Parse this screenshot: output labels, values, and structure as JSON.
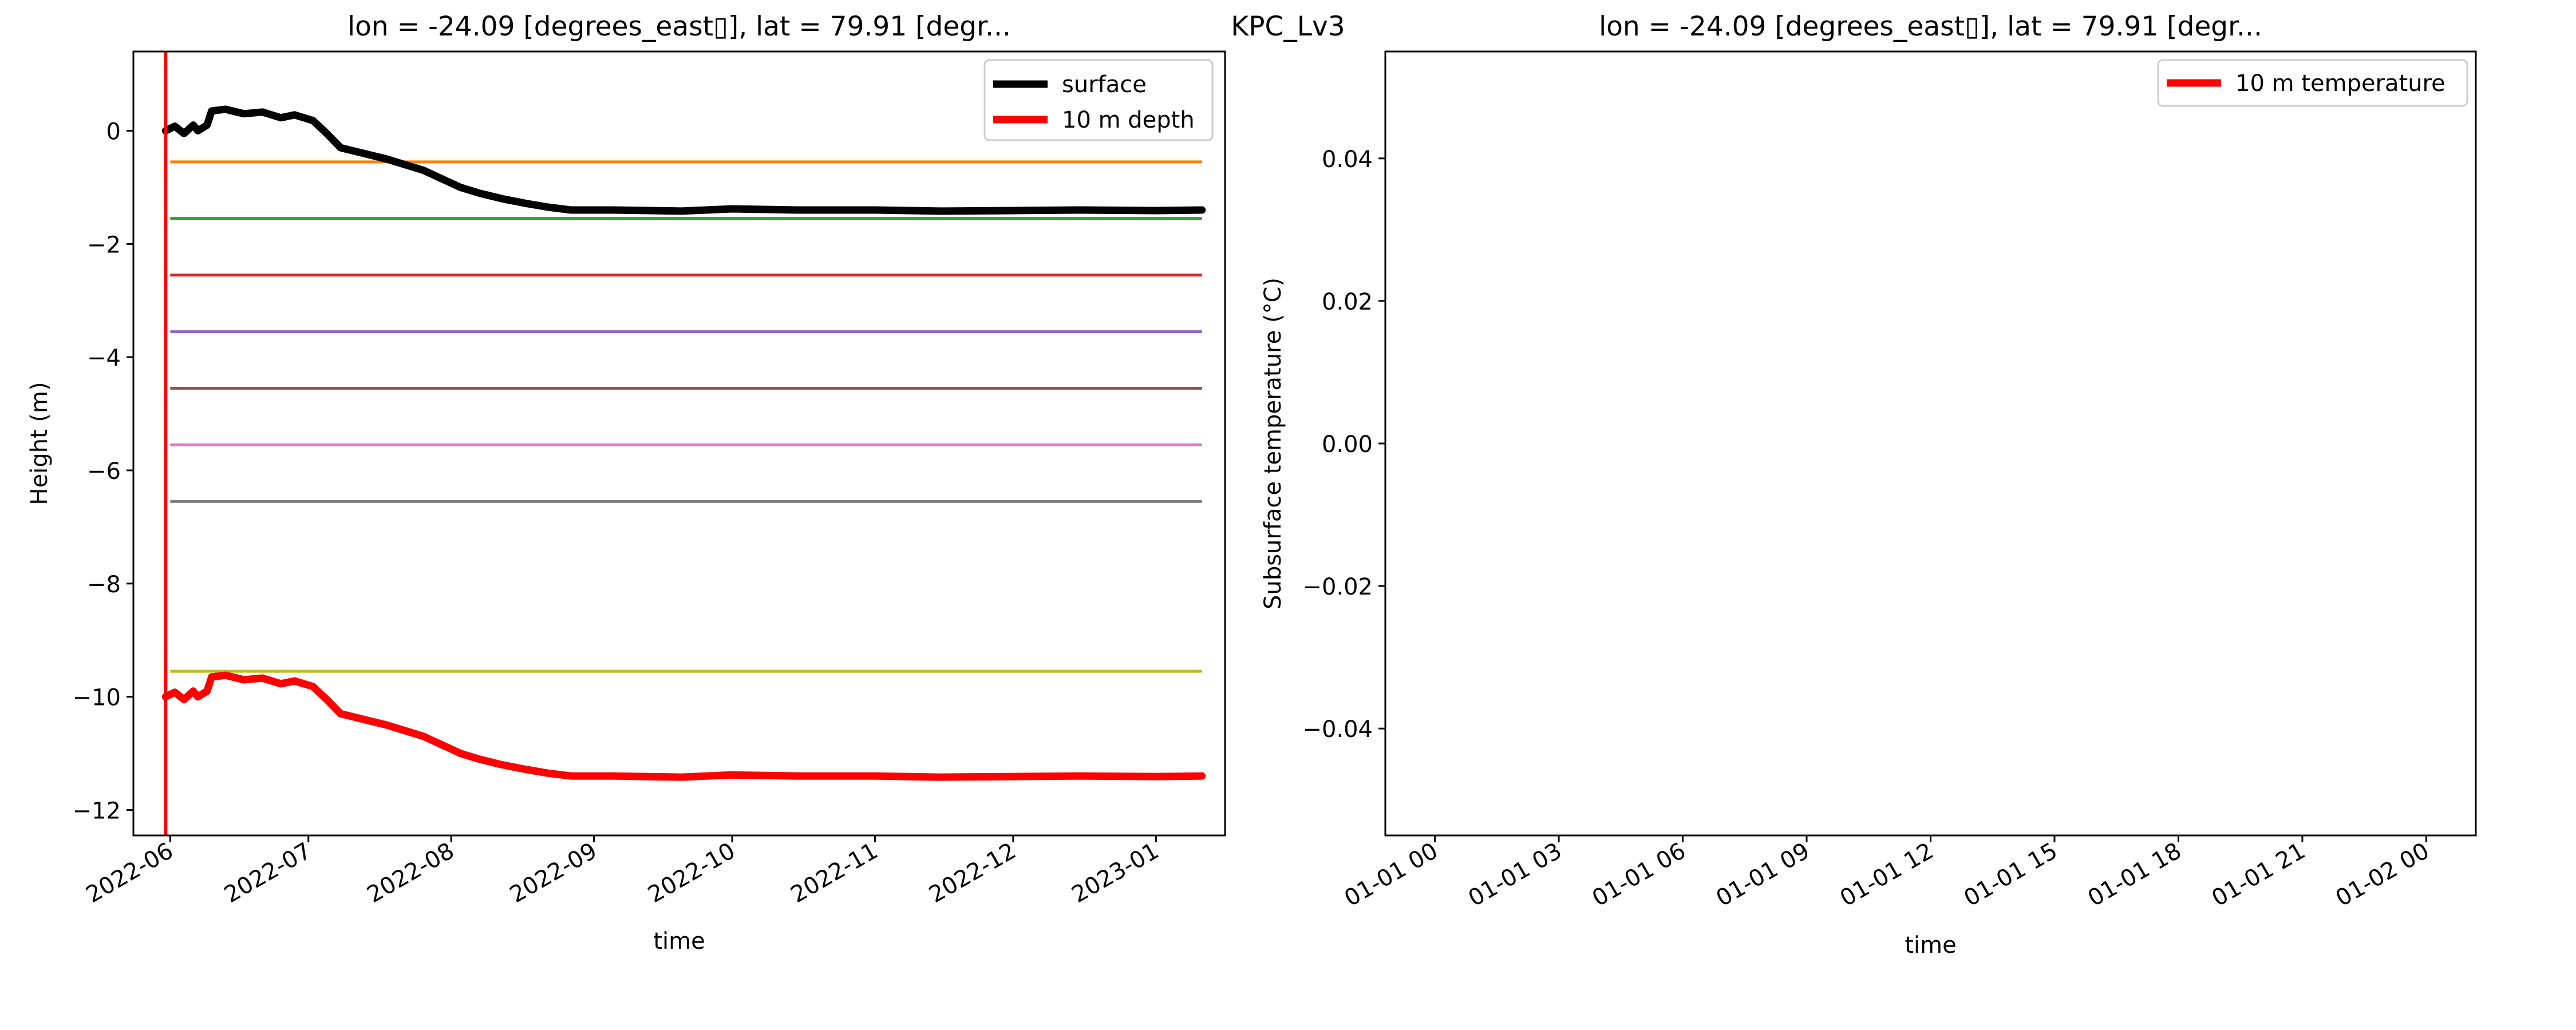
{
  "figure": {
    "suptitle": "KPC_Lv3"
  },
  "chart_data": [
    {
      "type": "line",
      "title": "lon = -24.09 [degrees_east▯], lat = 79.91 [degr...",
      "xlabel": "time",
      "ylabel": "Height (m)",
      "xlim": [
        "2022-05-24",
        "2023-01-16"
      ],
      "ylim": [
        -12.45,
        1.4
      ],
      "yticks": [
        0,
        -2,
        -4,
        -6,
        -8,
        -10,
        -12
      ],
      "ytick_labels": [
        "0",
        "−2",
        "−4",
        "−6",
        "−8",
        "−10",
        "−12"
      ],
      "xticks": [
        "2022-06-01",
        "2022-07-01",
        "2022-08-01",
        "2022-09-01",
        "2022-10-01",
        "2022-11-01",
        "2022-12-01",
        "2023-01-01"
      ],
      "xtick_labels": [
        "2022-06",
        "2022-07",
        "2022-08",
        "2022-09",
        "2022-10",
        "2022-11",
        "2022-12",
        "2023-01"
      ],
      "vline": {
        "x": "2022-05-31",
        "color": "#ff0000"
      },
      "hlines": [
        {
          "y": -0.55,
          "color": "#ff7f0e"
        },
        {
          "y": -1.55,
          "color": "#2ca02c"
        },
        {
          "y": -2.55,
          "color": "#d62728"
        },
        {
          "y": -3.55,
          "color": "#9467bd"
        },
        {
          "y": -4.55,
          "color": "#8c564b"
        },
        {
          "y": -5.55,
          "color": "#e377c2"
        },
        {
          "y": -6.55,
          "color": "#7f7f7f"
        },
        {
          "y": -9.55,
          "color": "#bcbd22"
        }
      ],
      "hline_range": [
        "2022-06-01",
        "2023-01-11"
      ],
      "legend": {
        "position": "top-right"
      },
      "series": [
        {
          "name": "surface",
          "color": "#000000",
          "points": [
            [
              "2022-05-31",
              0.0
            ],
            [
              "2022-06-02",
              0.08
            ],
            [
              "2022-06-04",
              -0.05
            ],
            [
              "2022-06-06",
              0.1
            ],
            [
              "2022-06-07",
              0.0
            ],
            [
              "2022-06-09",
              0.1
            ],
            [
              "2022-06-10",
              0.35
            ],
            [
              "2022-06-13",
              0.38
            ],
            [
              "2022-06-17",
              0.3
            ],
            [
              "2022-06-21",
              0.33
            ],
            [
              "2022-06-25",
              0.23
            ],
            [
              "2022-06-28",
              0.28
            ],
            [
              "2022-07-02",
              0.18
            ],
            [
              "2022-07-05",
              -0.05
            ],
            [
              "2022-07-08",
              -0.3
            ],
            [
              "2022-07-13",
              -0.4
            ],
            [
              "2022-07-18",
              -0.5
            ],
            [
              "2022-07-22",
              -0.6
            ],
            [
              "2022-07-26",
              -0.7
            ],
            [
              "2022-07-30",
              -0.85
            ],
            [
              "2022-08-03",
              -1.0
            ],
            [
              "2022-08-07",
              -1.1
            ],
            [
              "2022-08-12",
              -1.2
            ],
            [
              "2022-08-17",
              -1.28
            ],
            [
              "2022-08-22",
              -1.35
            ],
            [
              "2022-08-27",
              -1.4
            ],
            [
              "2022-09-05",
              -1.4
            ],
            [
              "2022-09-20",
              -1.42
            ],
            [
              "2022-10-01",
              -1.38
            ],
            [
              "2022-10-15",
              -1.4
            ],
            [
              "2022-11-01",
              -1.4
            ],
            [
              "2022-11-15",
              -1.42
            ],
            [
              "2022-12-01",
              -1.41
            ],
            [
              "2022-12-15",
              -1.4
            ],
            [
              "2023-01-01",
              -1.41
            ],
            [
              "2023-01-11",
              -1.4
            ]
          ]
        },
        {
          "name": "10 m depth",
          "color": "#ff0000",
          "points": [
            [
              "2022-05-31",
              -10.0
            ],
            [
              "2022-06-02",
              -9.92
            ],
            [
              "2022-06-04",
              -10.05
            ],
            [
              "2022-06-06",
              -9.9
            ],
            [
              "2022-06-07",
              -10.0
            ],
            [
              "2022-06-09",
              -9.9
            ],
            [
              "2022-06-10",
              -9.65
            ],
            [
              "2022-06-13",
              -9.62
            ],
            [
              "2022-06-17",
              -9.7
            ],
            [
              "2022-06-21",
              -9.67
            ],
            [
              "2022-06-25",
              -9.77
            ],
            [
              "2022-06-28",
              -9.72
            ],
            [
              "2022-07-02",
              -9.82
            ],
            [
              "2022-07-05",
              -10.05
            ],
            [
              "2022-07-08",
              -10.3
            ],
            [
              "2022-07-13",
              -10.4
            ],
            [
              "2022-07-18",
              -10.5
            ],
            [
              "2022-07-22",
              -10.6
            ],
            [
              "2022-07-26",
              -10.7
            ],
            [
              "2022-07-30",
              -10.85
            ],
            [
              "2022-08-03",
              -11.0
            ],
            [
              "2022-08-07",
              -11.1
            ],
            [
              "2022-08-12",
              -11.2
            ],
            [
              "2022-08-17",
              -11.28
            ],
            [
              "2022-08-22",
              -11.35
            ],
            [
              "2022-08-27",
              -11.4
            ],
            [
              "2022-09-05",
              -11.4
            ],
            [
              "2022-09-20",
              -11.42
            ],
            [
              "2022-10-01",
              -11.38
            ],
            [
              "2022-10-15",
              -11.4
            ],
            [
              "2022-11-01",
              -11.4
            ],
            [
              "2022-11-15",
              -11.42
            ],
            [
              "2022-12-01",
              -11.41
            ],
            [
              "2022-12-15",
              -11.4
            ],
            [
              "2023-01-01",
              -11.41
            ],
            [
              "2023-01-11",
              -11.4
            ]
          ]
        }
      ]
    },
    {
      "type": "line",
      "title": "lon = -24.09 [degrees_east▯], lat = 79.91 [degr...",
      "xlabel": "time",
      "ylabel": "Subsurface temperature (°C)",
      "ylim": [
        -0.055,
        0.055
      ],
      "yticks": [
        0.04,
        0.02,
        0.0,
        -0.02,
        -0.04
      ],
      "ytick_labels": [
        "0.04",
        "0.02",
        "0.00",
        "−0.02",
        "−0.04"
      ],
      "xlim_hours": [
        -1.2,
        25.2
      ],
      "xticks_hours": [
        0,
        3,
        6,
        9,
        12,
        15,
        18,
        21,
        24
      ],
      "xtick_labels": [
        "01-01 00",
        "01-01 03",
        "01-01 06",
        "01-01 09",
        "01-01 12",
        "01-01 15",
        "01-01 18",
        "01-01 21",
        "01-02 00"
      ],
      "legend": {
        "position": "top-right"
      },
      "series": [
        {
          "name": "10 m temperature",
          "color": "#ff0000",
          "points": []
        }
      ]
    }
  ]
}
